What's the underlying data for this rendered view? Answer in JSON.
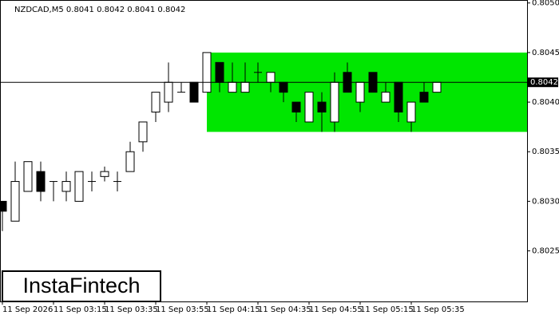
{
  "chart_data": {
    "type": "candlestick",
    "title": "NZDCAD,M5  0.8041 0.8042 0.8041 0.8042",
    "watermark": "InstaFintech",
    "categories": [
      "11 Sep 2026",
      null,
      null,
      null,
      "11 Sep 03:15",
      null,
      null,
      null,
      "11 Sep 03:35",
      null,
      null,
      null,
      "11 Sep 03:55",
      null,
      null,
      null,
      "11 Sep 04:15",
      null,
      null,
      null,
      "11 Sep 04:35",
      null,
      null,
      null,
      "11 Sep 04:55",
      null,
      null,
      null,
      "11 Sep 05:15",
      null,
      null,
      null,
      "11 Sep 05:35",
      null,
      null
    ],
    "open": [
      0.803,
      0.8028,
      0.8031,
      0.8033,
      0.8032,
      0.8031,
      0.803,
      0.8032,
      0.80325,
      0.8032,
      0.8033,
      0.8036,
      0.8039,
      0.804,
      0.8041,
      0.8042,
      0.8041,
      0.8044,
      0.8041,
      0.8041,
      0.8043,
      0.8042,
      0.8042,
      0.804,
      0.8038,
      0.804,
      0.8038,
      0.8043,
      0.804,
      0.8043,
      0.804,
      0.8042,
      0.8038,
      0.8041,
      0.8041
    ],
    "high": [
      0.803,
      0.8034,
      0.8034,
      0.8034,
      0.8032,
      0.8033,
      0.8033,
      0.8033,
      0.80335,
      0.8033,
      0.8036,
      0.8038,
      0.8041,
      0.8044,
      0.8042,
      0.8042,
      0.8045,
      0.8044,
      0.8044,
      0.8044,
      0.8044,
      0.8043,
      0.8042,
      0.804,
      0.8041,
      0.8041,
      0.8043,
      0.8044,
      0.8042,
      0.8043,
      0.8042,
      0.8042,
      0.804,
      0.8042,
      0.8042
    ],
    "low": [
      0.8027,
      0.8028,
      0.8031,
      0.803,
      0.803,
      0.803,
      0.803,
      0.8031,
      0.8032,
      0.8031,
      0.8033,
      0.8035,
      0.8038,
      0.8039,
      0.8041,
      0.804,
      0.8041,
      0.8041,
      0.8041,
      0.8041,
      0.8042,
      0.8041,
      0.804,
      0.8038,
      0.8038,
      0.8037,
      0.8037,
      0.8041,
      0.8039,
      0.8041,
      0.804,
      0.8038,
      0.8037,
      0.804,
      0.8041
    ],
    "close": [
      0.8029,
      0.8032,
      0.8034,
      0.8031,
      0.8032,
      0.8032,
      0.8033,
      0.8032,
      0.8033,
      0.8032,
      0.8035,
      0.8038,
      0.8041,
      0.8042,
      0.8041,
      0.804,
      0.8045,
      0.8042,
      0.8042,
      0.8042,
      0.8043,
      0.8043,
      0.8041,
      0.8039,
      0.8041,
      0.8039,
      0.8042,
      0.8041,
      0.8042,
      0.8041,
      0.8041,
      0.8039,
      0.804,
      0.804,
      0.8042
    ],
    "up_color": "#ffffff",
    "down_color": "#000000",
    "zone": {
      "start": "11 Sep 04:15",
      "top": 0.8045,
      "bottom": 0.8037,
      "color": "#00e600"
    },
    "current_price": 0.8042,
    "ylim": [
      0.80199,
      0.80503
    ],
    "yticks": [
      0.8025,
      {
        "value": 0.803,
        "label": "0.8030"
      },
      0.8035,
      {
        "value": 0.804,
        "label": "0.8040"
      },
      0.8045,
      {
        "value": 0.805,
        "label": "0.8050"
      }
    ]
  }
}
